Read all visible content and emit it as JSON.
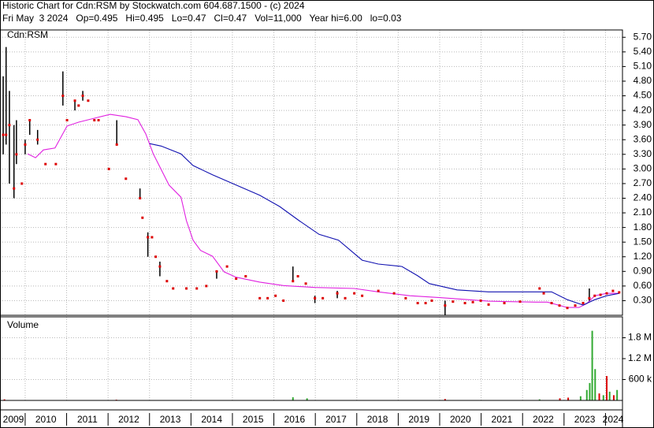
{
  "header": {
    "title": "Historic Chart for Cdn:RSM by Stockwatch.com 604.687.1500 - (c) 2024",
    "quote": "Fri May  3 2024   Op=0.495   Hi=0.495   Lo=0.47   Cl=0.47   Vol=11,000   Year hi=6.00   lo=0.03"
  },
  "chart_data": [
    {
      "type": "hlc",
      "label": "Cdn:RSM",
      "grid": true,
      "xlim": [
        2009.45,
        2024.41
      ],
      "xticks": [
        2010,
        2011,
        2012,
        2013,
        2014,
        2015,
        2016,
        2017,
        2018,
        2019,
        2020,
        2021,
        2022,
        2023,
        2024
      ],
      "ylim": [
        0,
        5.85
      ],
      "yticks": [
        {
          "value": 0.3,
          "label": "0.30"
        },
        {
          "value": 0.6,
          "label": "0.60"
        },
        {
          "value": 0.9,
          "label": "0.90"
        },
        {
          "value": 1.2,
          "label": "1.20"
        },
        {
          "value": 1.5,
          "label": "1.50"
        },
        {
          "value": 1.8,
          "label": "1.80"
        },
        {
          "value": 2.1,
          "label": "2.10"
        },
        {
          "value": 2.4,
          "label": "2.40"
        },
        {
          "value": 2.7,
          "label": "2.70"
        },
        {
          "value": 3.0,
          "label": "3.00"
        },
        {
          "value": 3.3,
          "label": "3.30"
        },
        {
          "value": 3.6,
          "label": "3.60"
        },
        {
          "value": 3.9,
          "label": "3.90"
        },
        {
          "value": 4.2,
          "label": "4.20"
        },
        {
          "value": 4.5,
          "label": "4.50"
        },
        {
          "value": 4.8,
          "label": "4.80"
        },
        {
          "value": 5.1,
          "label": "5.10"
        },
        {
          "value": 5.4,
          "label": "5.40"
        },
        {
          "value": 5.7,
          "label": "5.70"
        }
      ],
      "bar_color": "#000000",
      "close_color": "#dd0000",
      "x": [
        2009.47,
        2009.54,
        2009.62,
        2009.73,
        2009.79,
        2009.92,
        2010.0,
        2010.11,
        2010.3,
        2010.49,
        2010.74,
        2010.91,
        2011.01,
        2011.2,
        2011.29,
        2011.39,
        2011.52,
        2011.67,
        2011.77,
        2012.02,
        2012.21,
        2012.43,
        2012.77,
        2012.83,
        2012.96,
        2013.06,
        2013.15,
        2013.25,
        2013.42,
        2013.57,
        2013.89,
        2014.14,
        2014.37,
        2014.62,
        2014.87,
        2015.09,
        2015.32,
        2015.66,
        2015.85,
        2016.04,
        2016.23,
        2016.46,
        2016.58,
        2016.77,
        2016.99,
        2017.18,
        2017.53,
        2017.72,
        2017.94,
        2018.13,
        2018.52,
        2018.9,
        2019.18,
        2019.47,
        2019.66,
        2019.81,
        2020.13,
        2020.32,
        2020.61,
        2020.8,
        2020.99,
        2021.18,
        2021.56,
        2021.94,
        2022.41,
        2022.51,
        2022.7,
        2022.89,
        2023.08,
        2023.27,
        2023.46,
        2023.61,
        2023.74,
        2023.88,
        2024.03,
        2024.18,
        2024.33
      ],
      "high": [
        4.9,
        5.5,
        4.6,
        3.9,
        4.0,
        null,
        3.6,
        4.0,
        3.8,
        null,
        null,
        5.0,
        null,
        4.4,
        null,
        4.6,
        null,
        null,
        null,
        null,
        4.0,
        null,
        2.6,
        null,
        1.7,
        null,
        null,
        1.1,
        null,
        null,
        null,
        null,
        null,
        0.9,
        null,
        null,
        null,
        null,
        null,
        null,
        null,
        1.0,
        null,
        null,
        0.4,
        null,
        0.5,
        null,
        null,
        null,
        null,
        null,
        null,
        null,
        null,
        null,
        0.3,
        null,
        null,
        null,
        null,
        null,
        null,
        null,
        null,
        null,
        null,
        null,
        null,
        null,
        null,
        0.55,
        null,
        null,
        null,
        null,
        null
      ],
      "low": [
        3.3,
        3.5,
        2.7,
        2.4,
        3.1,
        null,
        3.3,
        3.7,
        3.5,
        null,
        null,
        4.3,
        null,
        4.2,
        null,
        4.4,
        null,
        null,
        null,
        null,
        3.5,
        null,
        2.4,
        null,
        1.2,
        null,
        null,
        0.8,
        null,
        null,
        null,
        null,
        null,
        0.75,
        null,
        null,
        null,
        null,
        null,
        null,
        null,
        0.7,
        null,
        null,
        0.25,
        null,
        0.35,
        null,
        null,
        null,
        null,
        null,
        null,
        null,
        null,
        null,
        0.0,
        null,
        null,
        null,
        null,
        null,
        null,
        null,
        null,
        null,
        null,
        null,
        null,
        null,
        null,
        0.3,
        null,
        null,
        null,
        null,
        null
      ],
      "close": [
        3.7,
        3.7,
        3.9,
        2.6,
        3.3,
        2.7,
        3.5,
        4.0,
        3.6,
        3.1,
        3.1,
        4.5,
        4.0,
        4.4,
        4.3,
        4.5,
        4.4,
        4.0,
        4.0,
        3.0,
        3.5,
        2.8,
        2.4,
        2.0,
        1.6,
        1.6,
        1.2,
        1.0,
        0.7,
        0.55,
        0.55,
        0.55,
        0.6,
        0.9,
        1.0,
        0.75,
        0.8,
        0.35,
        0.35,
        0.4,
        0.3,
        0.7,
        0.8,
        0.65,
        0.35,
        0.35,
        0.45,
        0.35,
        0.45,
        0.4,
        0.5,
        0.45,
        0.35,
        0.25,
        0.25,
        0.3,
        0.2,
        0.28,
        0.25,
        0.27,
        0.3,
        0.22,
        0.25,
        0.28,
        0.55,
        0.45,
        0.25,
        0.2,
        0.15,
        0.2,
        0.25,
        0.35,
        0.4,
        0.42,
        0.45,
        0.5,
        0.47
      ],
      "moving_averages": [
        {
          "color": "#e020e0",
          "x": [
            2010.06,
            2010.25,
            2010.44,
            2010.72,
            2011.01,
            2011.29,
            2011.67,
            2012.05,
            2012.43,
            2012.72,
            2012.91,
            2013.09,
            2013.28,
            2013.47,
            2013.76,
            2013.89,
            2014.05,
            2014.23,
            2014.52,
            2014.8,
            2015.09,
            2015.66,
            2016.23,
            2016.99,
            2017.94,
            2018.52,
            2019.28,
            2020.04,
            2021.18,
            2022.32,
            2022.6,
            2023.08,
            2023.36,
            2023.55,
            2023.74,
            2024.03,
            2024.33
          ],
          "values": [
            3.31,
            3.23,
            3.39,
            3.43,
            3.88,
            3.96,
            4.04,
            4.12,
            4.07,
            4.01,
            3.72,
            3.31,
            2.99,
            2.67,
            2.42,
            1.94,
            1.54,
            1.33,
            1.21,
            0.89,
            0.78,
            0.68,
            0.61,
            0.57,
            0.55,
            0.48,
            0.4,
            0.36,
            0.29,
            0.27,
            0.27,
            0.16,
            0.16,
            0.24,
            0.4,
            0.45,
            0.45
          ]
        },
        {
          "color": "#1010b0",
          "x": [
            2013.0,
            2013.28,
            2013.76,
            2014.05,
            2014.52,
            2015.09,
            2015.66,
            2016.14,
            2016.61,
            2017.09,
            2017.56,
            2018.13,
            2018.52,
            2019.09,
            2019.47,
            2019.75,
            2020.42,
            2021.18,
            2022.7,
            2023.08,
            2023.46,
            2023.74,
            2024.03,
            2024.33
          ],
          "values": [
            3.52,
            3.47,
            3.31,
            3.07,
            2.88,
            2.67,
            2.46,
            2.23,
            1.94,
            1.66,
            1.54,
            1.13,
            1.05,
            1.0,
            0.81,
            0.65,
            0.52,
            0.48,
            0.48,
            0.32,
            0.21,
            0.32,
            0.4,
            0.45
          ]
        }
      ]
    },
    {
      "type": "volume",
      "label": "Volume",
      "grid": true,
      "xlim": [
        2009.45,
        2024.41
      ],
      "xticks": [
        2010,
        2011,
        2012,
        2013,
        2014,
        2015,
        2016,
        2017,
        2018,
        2019,
        2020,
        2021,
        2022,
        2023,
        2024
      ],
      "year_labels": [
        2009,
        2010,
        2011,
        2012,
        2013,
        2014,
        2015,
        2016,
        2017,
        2018,
        2019,
        2020,
        2021,
        2022,
        2023,
        2024
      ],
      "ylim": [
        0,
        2400000
      ],
      "yticks": [
        {
          "value": 600000,
          "label": "600 k"
        },
        {
          "value": 1200000,
          "label": "1.2 M"
        },
        {
          "value": 1800000,
          "label": "1.8 M"
        }
      ],
      "x": [
        2009.5,
        2012.2,
        2016.46,
        2016.8,
        2020.13,
        2022.41,
        2022.9,
        2023.1,
        2023.4,
        2023.55,
        2023.62,
        2023.68,
        2023.75,
        2023.85,
        2023.95,
        2024.03,
        2024.1,
        2024.2,
        2024.28
      ],
      "values": [
        30000,
        20000,
        90000,
        60000,
        40000,
        30000,
        60000,
        80000,
        120000,
        300000,
        500000,
        2000000,
        900000,
        200000,
        150000,
        700000,
        250000,
        150000,
        300000
      ],
      "colors": [
        "#dd0000",
        "#dd0000",
        "#33aa33",
        "#33aa33",
        "#dd0000",
        "#33aa33",
        "#dd0000",
        "#dd0000",
        "#33aa33",
        "#33aa33",
        "#33aa33",
        "#33aa33",
        "#33aa33",
        "#dd0000",
        "#33aa33",
        "#dd0000",
        "#33aa33",
        "#dd0000",
        "#33aa33"
      ]
    }
  ]
}
